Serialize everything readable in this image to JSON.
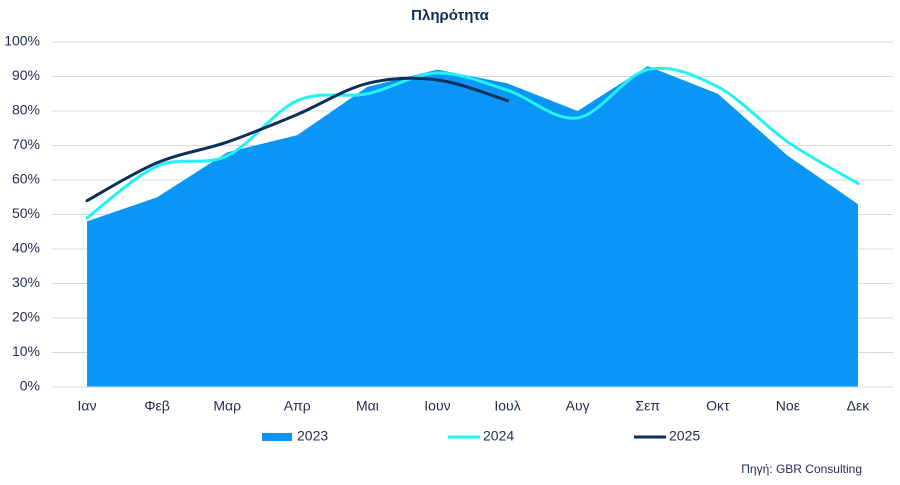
{
  "chart_data": {
    "type": "area-line",
    "title": "Πληρότητα",
    "categories": [
      "Ιαν",
      "Φεβ",
      "Μαρ",
      "Απρ",
      "Μαι",
      "Ιουν",
      "Ιουλ",
      "Αυγ",
      "Σεπ",
      "Οκτ",
      "Νοε",
      "Δεκ"
    ],
    "series": [
      {
        "name": "2023",
        "kind": "area",
        "color": "#0a96f7",
        "values": [
          48,
          55,
          68,
          73,
          87,
          92,
          88,
          80,
          93,
          85,
          67,
          53
        ]
      },
      {
        "name": "2024",
        "kind": "line",
        "color": "#22f2f2",
        "values": [
          49,
          64,
          67,
          83,
          85,
          91,
          86,
          78,
          92,
          87,
          71,
          59
        ]
      },
      {
        "name": "2025",
        "kind": "line",
        "color": "#0d2f5a",
        "values": [
          54,
          65,
          71,
          79,
          88,
          89,
          83,
          null,
          null,
          null,
          null,
          null
        ]
      }
    ],
    "ylim": [
      0,
      100
    ],
    "yticks": [
      {
        "value": 0,
        "label": "0%"
      },
      {
        "value": 10,
        "label": "10%"
      },
      {
        "value": 20,
        "label": "20%"
      },
      {
        "value": 30,
        "label": "30%"
      },
      {
        "value": 40,
        "label": "40%"
      },
      {
        "value": 50,
        "label": "50%"
      },
      {
        "value": 60,
        "label": "60%"
      },
      {
        "value": 70,
        "label": "70%"
      },
      {
        "value": 80,
        "label": "80%"
      },
      {
        "value": 90,
        "label": "90%"
      },
      {
        "value": 100,
        "label": "100%"
      }
    ],
    "grid": true,
    "legend": "bottom",
    "note": "Πηγή: GBR Consulting"
  }
}
